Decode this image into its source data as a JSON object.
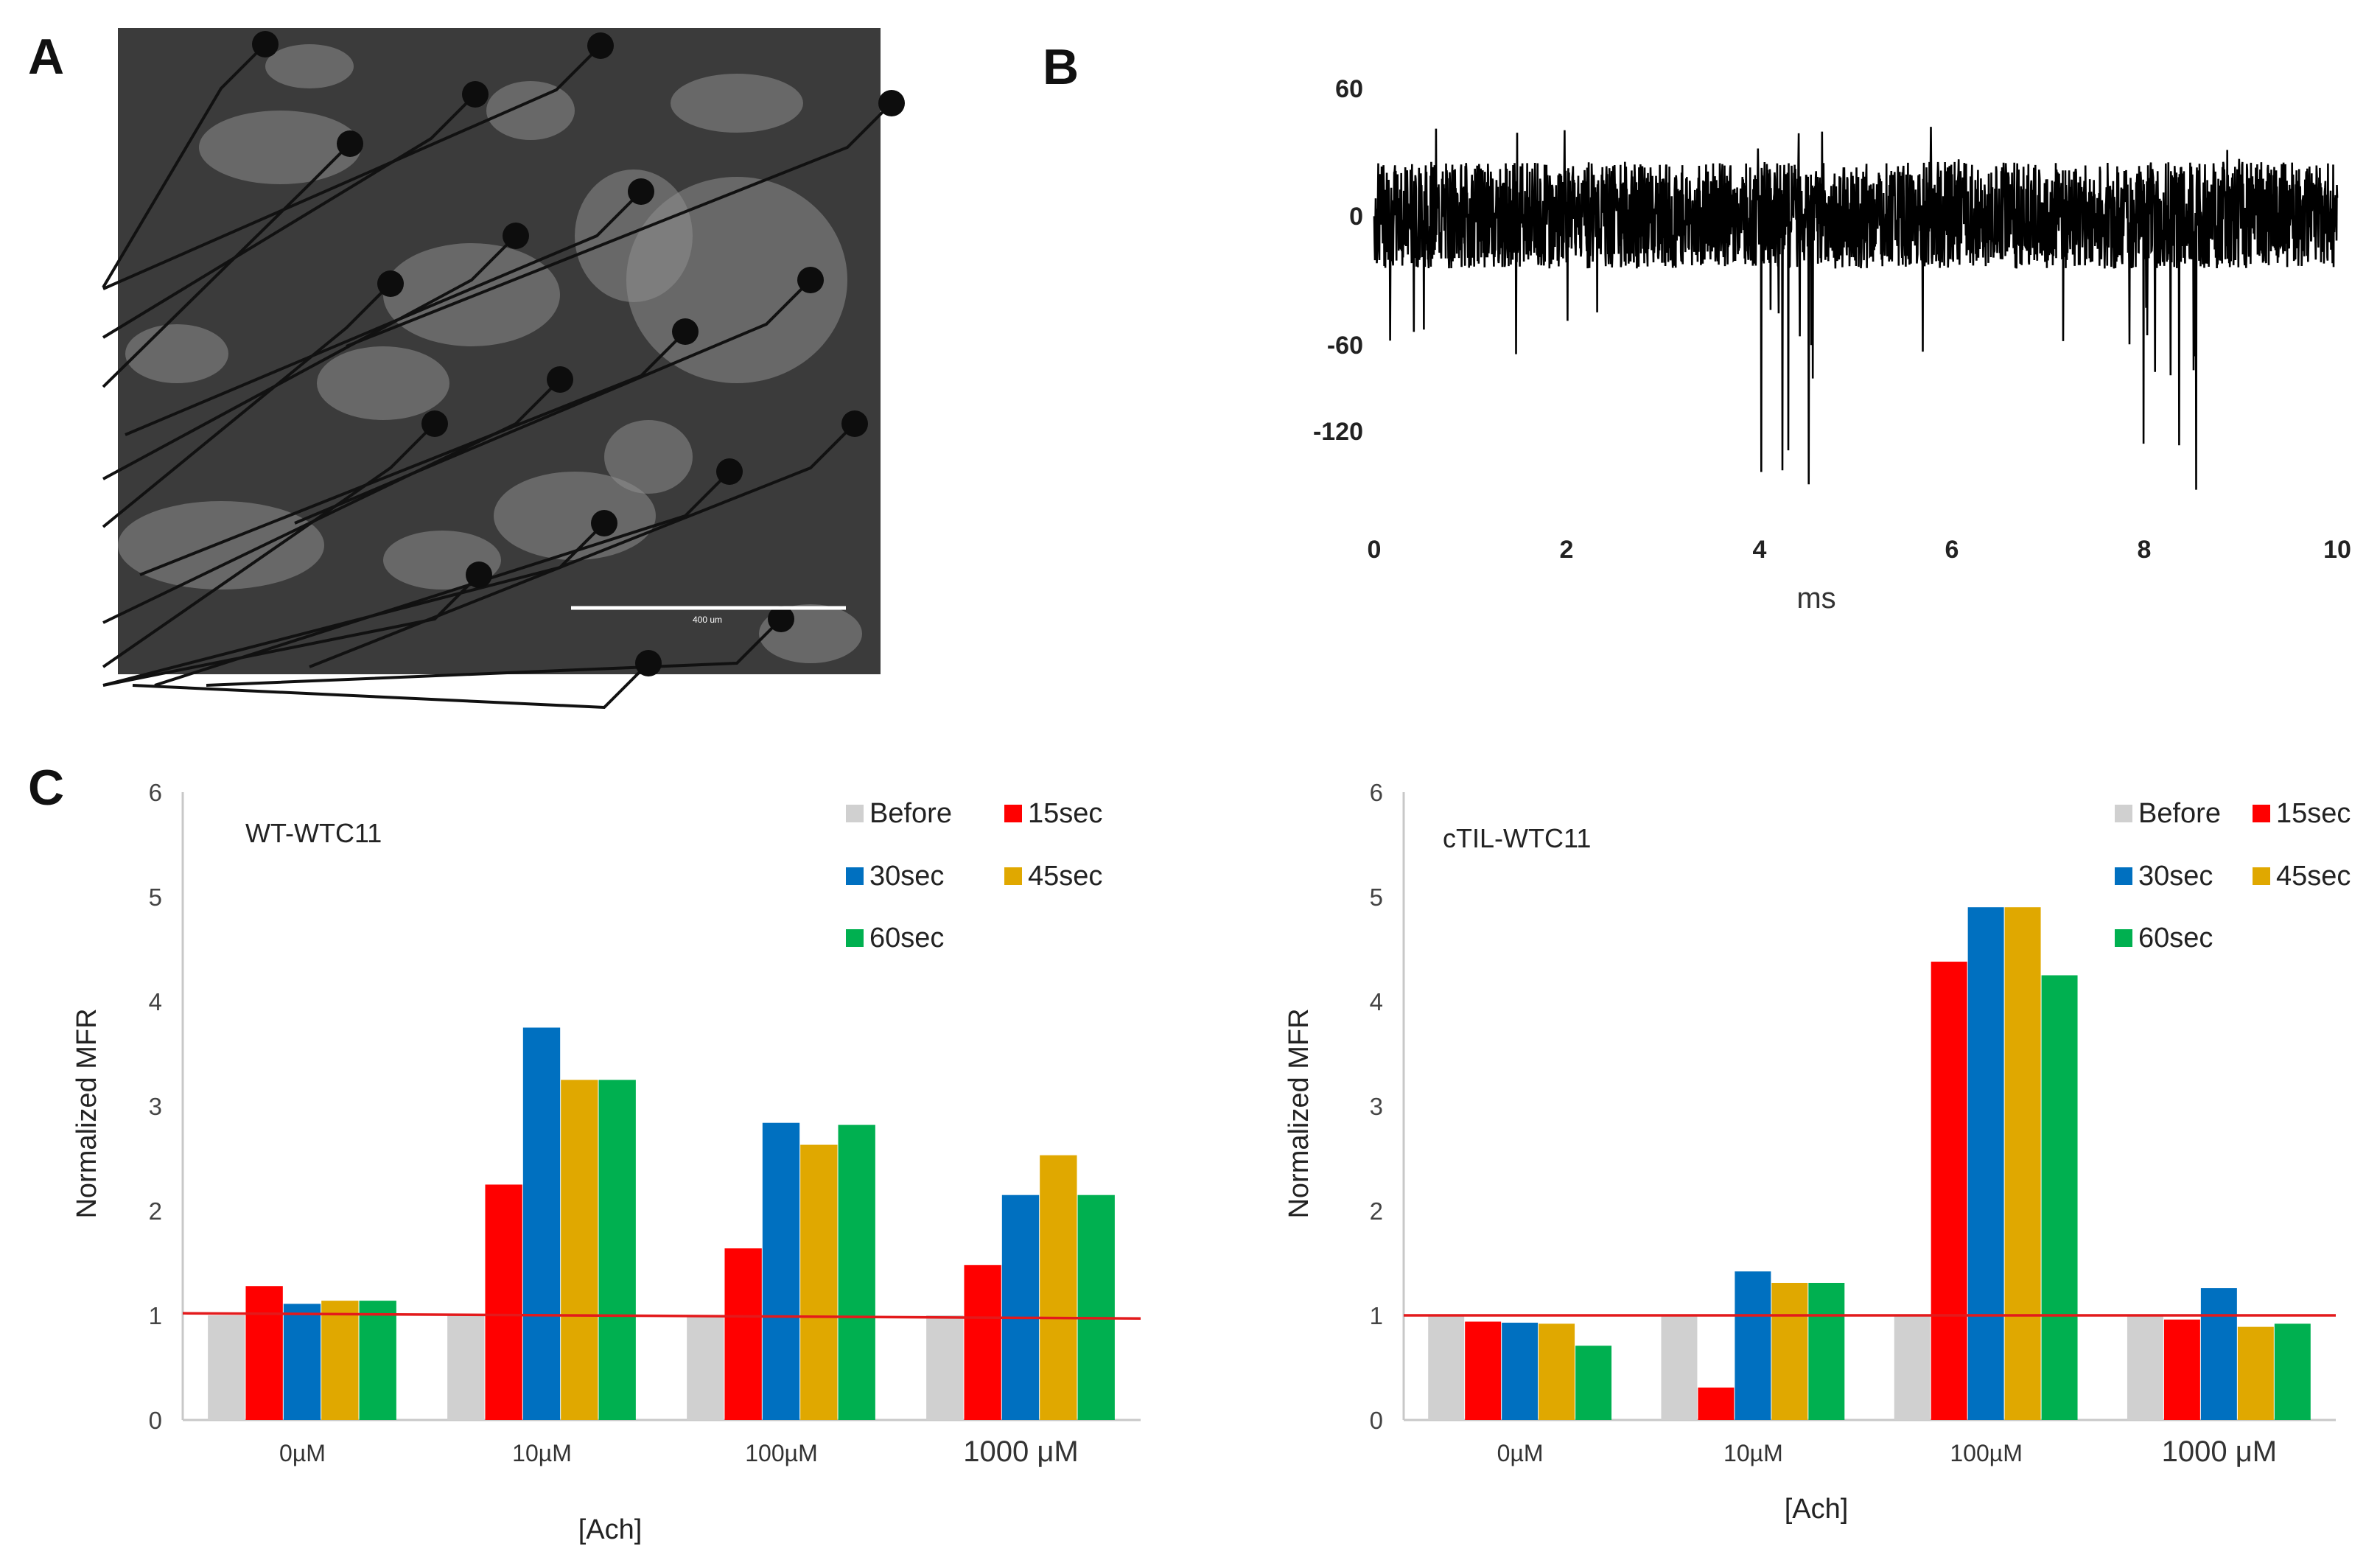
{
  "panels": {
    "a": "A",
    "b": "B",
    "c": "C"
  },
  "micrograph": {
    "scale_bar_label": "400 um"
  },
  "trace": {
    "y_ticks": [
      "60",
      "0",
      "-60",
      "-120"
    ],
    "x_ticks": [
      "0",
      "2",
      "4",
      "6",
      "8",
      "10"
    ],
    "xlabel": "ms"
  },
  "chart_data": [
    {
      "type": "bar",
      "title": "WT-WTC11",
      "categories": [
        "0µM",
        "10µM",
        "100µM",
        "1000 μM"
      ],
      "series": [
        {
          "name": "Before",
          "color": "#d0d0d0",
          "values": [
            1.0,
            1.0,
            1.0,
            1.0
          ]
        },
        {
          "name": "15sec",
          "color": "#ff0000",
          "values": [
            1.28,
            2.25,
            1.64,
            1.48
          ]
        },
        {
          "name": "30sec",
          "color": "#0070c0",
          "values": [
            1.11,
            3.75,
            2.84,
            2.15
          ]
        },
        {
          "name": "45sec",
          "color": "#e0a800",
          "values": [
            1.14,
            3.25,
            2.63,
            2.53
          ]
        },
        {
          "name": "60sec",
          "color": "#00b050",
          "values": [
            1.14,
            3.25,
            2.82,
            2.15
          ]
        }
      ],
      "reference_line": {
        "start": 1.02,
        "end": 0.97,
        "color": "#e31a1c"
      },
      "ylabel": "Normalized MFR",
      "xlabel": "[Ach]",
      "ylim": [
        0,
        6
      ],
      "y_ticks": [
        0,
        1,
        2,
        3,
        4,
        5,
        6
      ]
    },
    {
      "type": "bar",
      "title": "cTIL-WTC11",
      "categories": [
        "0µM",
        "10µM",
        "100µM",
        "1000 μM"
      ],
      "series": [
        {
          "name": "Before",
          "color": "#d0d0d0",
          "values": [
            1.0,
            1.0,
            1.0,
            1.0
          ]
        },
        {
          "name": "15sec",
          "color": "#ff0000",
          "values": [
            0.94,
            0.31,
            4.38,
            0.96
          ]
        },
        {
          "name": "30sec",
          "color": "#0070c0",
          "values": [
            0.93,
            1.42,
            4.9,
            1.26
          ]
        },
        {
          "name": "45sec",
          "color": "#e0a800",
          "values": [
            0.92,
            1.31,
            4.9,
            0.89
          ]
        },
        {
          "name": "60sec",
          "color": "#00b050",
          "values": [
            0.71,
            1.31,
            4.25,
            0.92
          ]
        }
      ],
      "reference_line": {
        "start": 1.0,
        "end": 1.0,
        "color": "#e31a1c"
      },
      "ylabel": "Normalized MFR",
      "xlabel": "[Ach]",
      "ylim": [
        0,
        6
      ],
      "y_ticks": [
        0,
        1,
        2,
        3,
        4,
        5,
        6
      ]
    }
  ]
}
